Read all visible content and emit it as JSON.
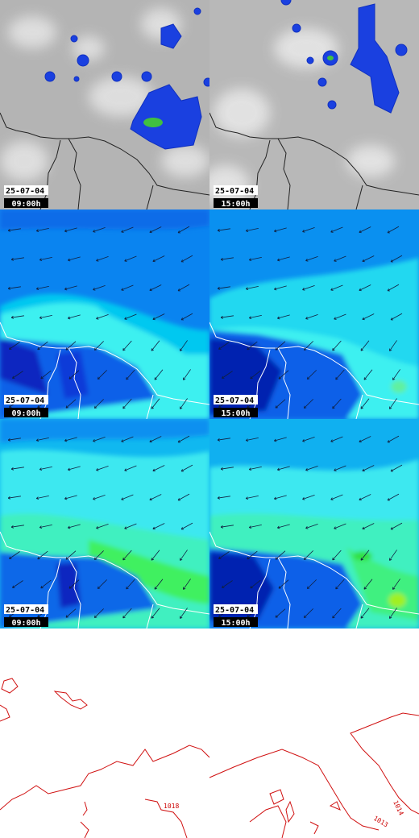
{
  "panels": [
    {
      "date": "25-07-04",
      "time": "09:00h"
    },
    {
      "date": "25-07-04",
      "time": "15:00h"
    },
    {
      "date": "25-07-04",
      "time": "09:00h"
    },
    {
      "date": "25-07-04",
      "time": "15:00h"
    },
    {
      "date": "25-07-04",
      "time": "09:00h"
    },
    {
      "date": "25-07-04",
      "time": "15:00h"
    }
  ],
  "contour_labels": [
    "1018",
    "1014",
    "1013"
  ]
}
